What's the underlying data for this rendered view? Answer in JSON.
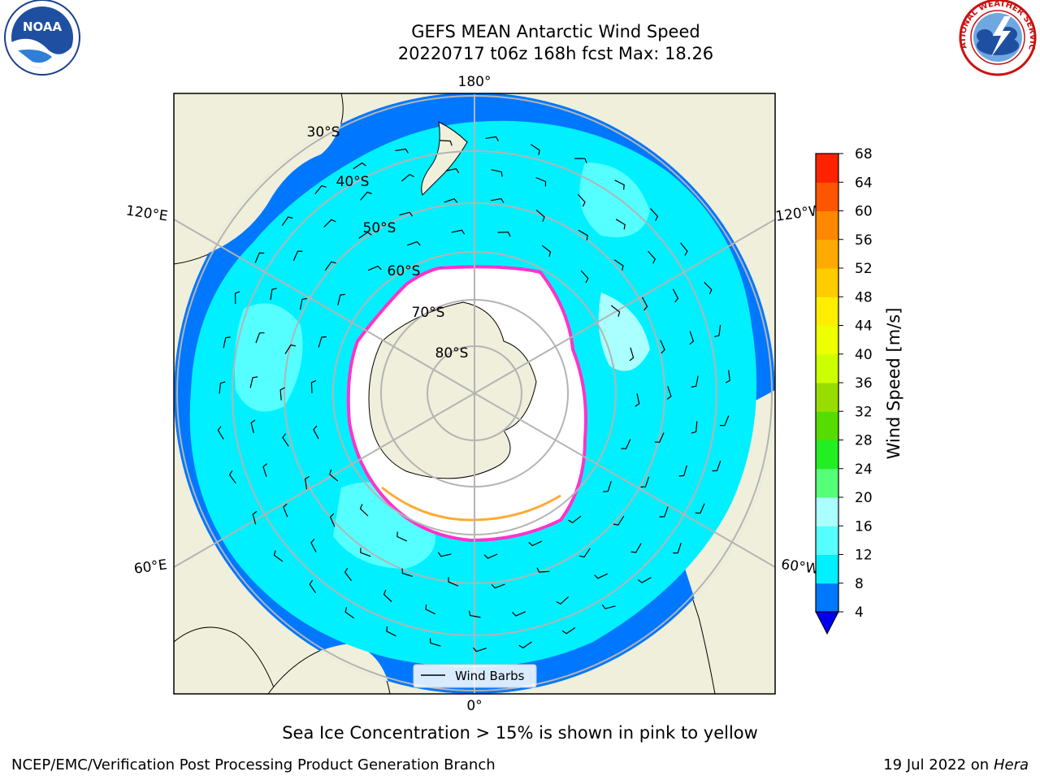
{
  "title": {
    "line1": "GEFS MEAN Antarctic Wind Speed",
    "line2": "20220717 t06z 168h fcst   Max: 18.26"
  },
  "logos": {
    "left": {
      "icon": "noaa-logo",
      "text": "NOAA"
    },
    "right": {
      "icon": "nws-logo",
      "text": "NATIONAL WEATHER SERVICE"
    }
  },
  "map": {
    "projection": "south-polar-stereographic",
    "longitude_labels": {
      "top": "180°",
      "bottom": "0°",
      "upper_left": "120°E",
      "lower_left": "60°E",
      "upper_right": "120°W",
      "lower_right": "60°W"
    },
    "latitude_labels": [
      "30°S",
      "40°S",
      "50°S",
      "60°S",
      "70°S",
      "80°S"
    ],
    "legend": {
      "label": "Wind Barbs"
    },
    "colors": {
      "ocean_outer": "#0077ff",
      "ocean_main": "#00f0ff",
      "ocean_light": "#55ffff",
      "land": "#efefdb",
      "ice_edge": "#ff33cc",
      "grid": "#b4b4b4"
    }
  },
  "colorbar": {
    "label": "Wind Speed [m/s]",
    "ticks": [
      "4",
      "8",
      "12",
      "16",
      "20",
      "24",
      "28",
      "32",
      "36",
      "40",
      "44",
      "48",
      "52",
      "56",
      "60",
      "64",
      "68"
    ],
    "colors": [
      "#0077ff",
      "#00f0ff",
      "#55ffff",
      "#aaffff",
      "#55ff77",
      "#22ee22",
      "#55dd00",
      "#99dd00",
      "#ccff00",
      "#eeff00",
      "#ffee00",
      "#ffcc00",
      "#ffaa00",
      "#ff8800",
      "#ff5500",
      "#ff2200"
    ],
    "underflow_color": "#0000ee"
  },
  "caption": "Sea Ice Concentration > 15% is shown in pink to yellow",
  "footer": {
    "left": "NCEP/EMC/Verification Post Processing Product Generation Branch",
    "right_prefix": "19 Jul 2022 on",
    "right_machine": "Hera"
  }
}
